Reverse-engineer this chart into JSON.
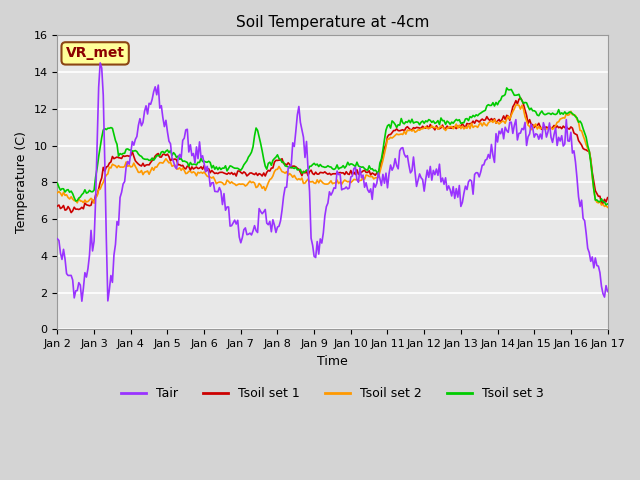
{
  "title": "Soil Temperature at -4cm",
  "xlabel": "Time",
  "ylabel": "Temperature (C)",
  "ylim": [
    0,
    16
  ],
  "xlim": [
    0,
    360
  ],
  "fig_bg": "#d4d4d4",
  "plot_bg": "#e8e8e8",
  "grid_color": "#ffffff",
  "annotation_label": "VR_met",
  "annotation_box_facecolor": "#ffff99",
  "annotation_box_edgecolor": "#8B4513",
  "annotation_text_color": "#8B0000",
  "colors": {
    "Tair": "#9933ff",
    "Tsoil1": "#cc0000",
    "Tsoil2": "#ff9900",
    "Tsoil3": "#00cc00"
  },
  "legend_labels": [
    "Tair",
    "Tsoil set 1",
    "Tsoil set 2",
    "Tsoil set 3"
  ],
  "xtick_labels": [
    "Jan 2",
    "Jan 3",
    "Jan 4",
    "Jan 5",
    "Jan 6",
    "Jan 7",
    "Jan 8",
    "Jan 9",
    "Jan 10",
    "Jan 11",
    "Jan 12",
    "Jan 13",
    "Jan 14",
    "Jan 15",
    "Jan 16",
    "Jan 17"
  ],
  "xtick_positions": [
    0,
    24,
    48,
    72,
    96,
    120,
    144,
    168,
    192,
    216,
    240,
    264,
    288,
    312,
    336,
    360
  ],
  "ytick_positions": [
    0,
    2,
    4,
    6,
    8,
    10,
    12,
    14,
    16
  ],
  "linewidth": 1.2,
  "title_fontsize": 11,
  "axis_label_fontsize": 9,
  "tick_fontsize": 8,
  "legend_fontsize": 9
}
